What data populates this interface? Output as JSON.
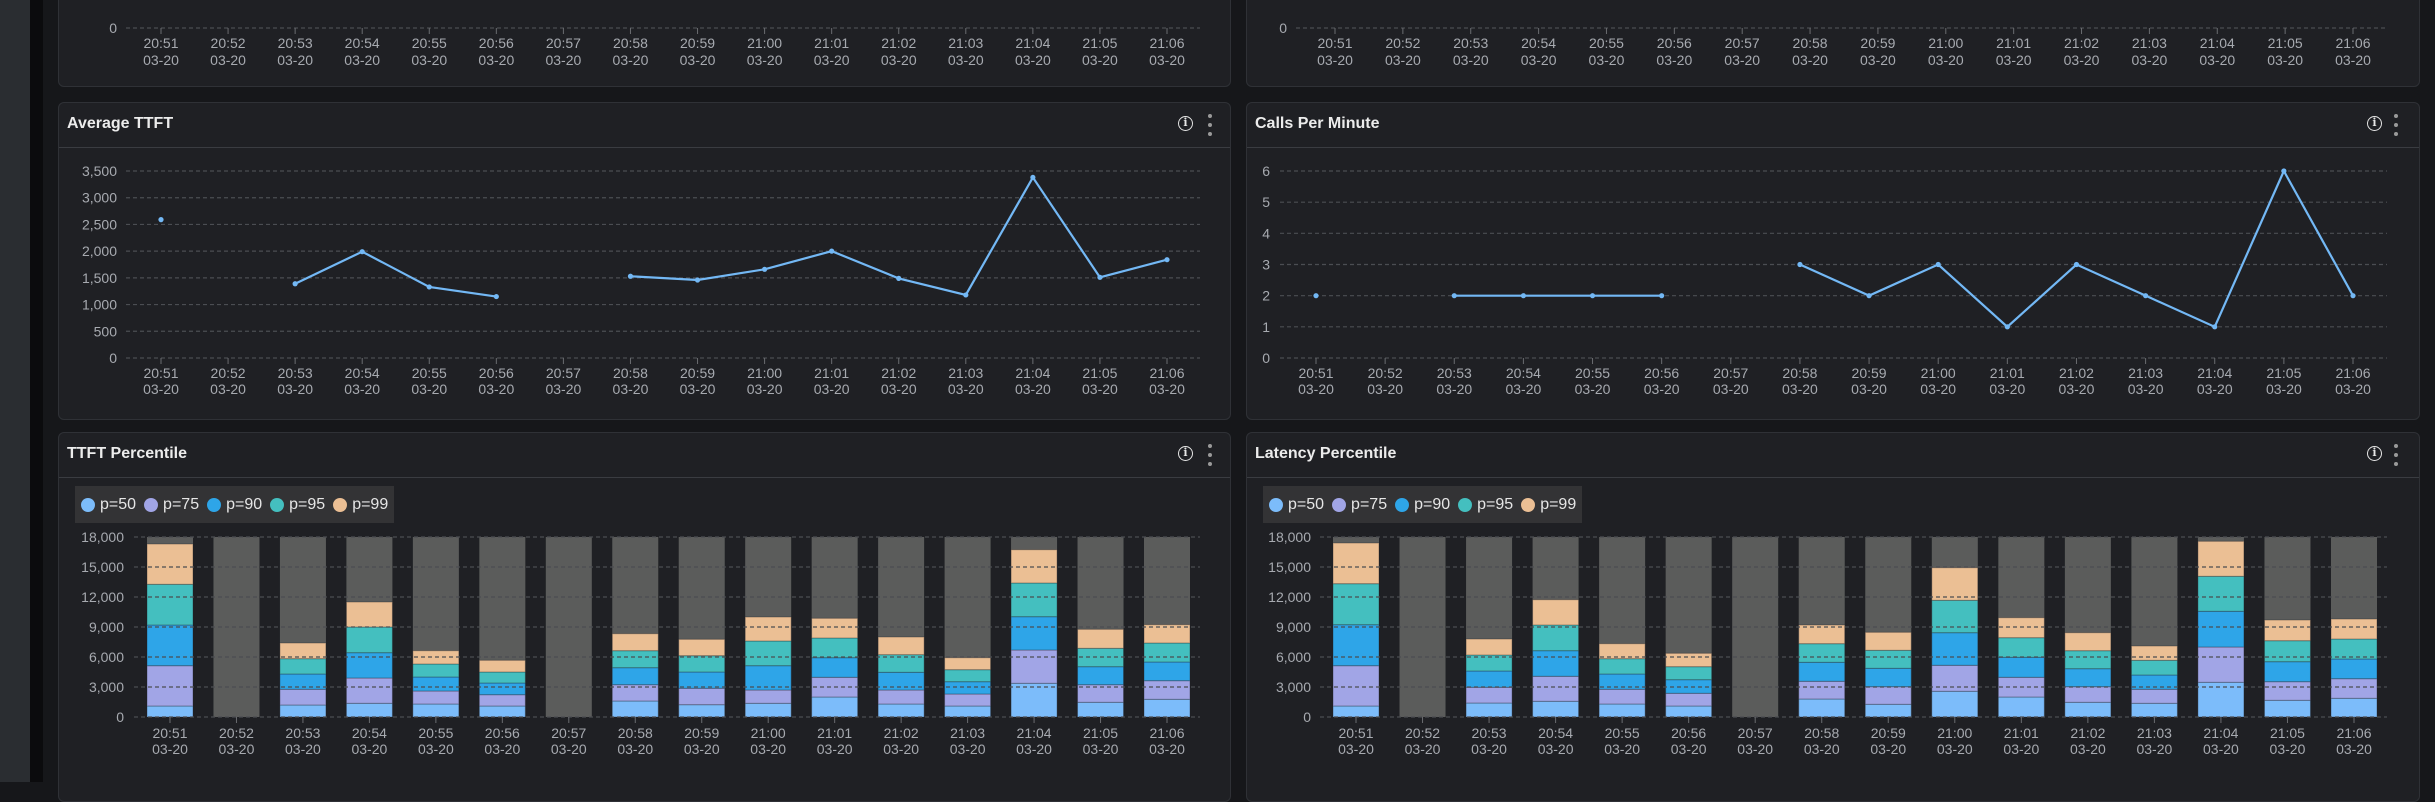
{
  "colors": {
    "line": "#73b8f5",
    "background_bar": "#5b5c5b",
    "p50": "#7cbcfa",
    "p75": "#a1a5e6",
    "p90": "#2ea5e8",
    "p95": "#44bfbf",
    "p99": "#ebbf94"
  },
  "icons": {
    "info": "info-circle-icon",
    "menu": "kebab-menu-icon"
  },
  "info_glyph": "i",
  "chart_data": [
    {
      "type": "line",
      "title": "",
      "categories": [
        "20:51 03-20",
        "20:52 03-20",
        "20:53 03-20",
        "20:54 03-20",
        "20:55 03-20",
        "20:56 03-20",
        "20:57 03-20",
        "20:58 03-20",
        "20:59 03-20",
        "21:00 03-20",
        "21:01 03-20",
        "21:02 03-20",
        "21:03 03-20",
        "21:04 03-20",
        "21:05 03-20",
        "21:06 03-20"
      ],
      "yticks": [
        0
      ],
      "grid": true
    },
    {
      "type": "line",
      "title": "",
      "categories": [
        "20:51 03-20",
        "20:52 03-20",
        "20:53 03-20",
        "20:54 03-20",
        "20:55 03-20",
        "20:56 03-20",
        "20:57 03-20",
        "20:58 03-20",
        "20:59 03-20",
        "21:00 03-20",
        "21:01 03-20",
        "21:02 03-20",
        "21:03 03-20",
        "21:04 03-20",
        "21:05 03-20",
        "21:06 03-20"
      ],
      "yticks": [
        0
      ],
      "grid": true
    },
    {
      "type": "line",
      "title": "Average TTFT",
      "categories": [
        "20:51 03-20",
        "20:52 03-20",
        "20:53 03-20",
        "20:54 03-20",
        "20:55 03-20",
        "20:56 03-20",
        "20:57 03-20",
        "20:58 03-20",
        "20:59 03-20",
        "21:00 03-20",
        "21:01 03-20",
        "21:02 03-20",
        "21:03 03-20",
        "21:04 03-20",
        "21:05 03-20",
        "21:06 03-20"
      ],
      "values": [
        2590,
        null,
        1390,
        1990,
        1330,
        1150,
        null,
        1530,
        1460,
        1660,
        2000,
        1490,
        1180,
        3380,
        1510,
        1840
      ],
      "ylim": [
        0,
        3500
      ],
      "yticks": [
        0,
        500,
        1000,
        1500,
        2000,
        2500,
        3000,
        3500
      ],
      "grid": true
    },
    {
      "type": "line",
      "title": "Calls Per Minute",
      "categories": [
        "20:51 03-20",
        "20:52 03-20",
        "20:53 03-20",
        "20:54 03-20",
        "20:55 03-20",
        "20:56 03-20",
        "20:57 03-20",
        "20:58 03-20",
        "20:59 03-20",
        "21:00 03-20",
        "21:01 03-20",
        "21:02 03-20",
        "21:03 03-20",
        "21:04 03-20",
        "21:05 03-20",
        "21:06 03-20"
      ],
      "values": [
        2,
        null,
        2,
        2,
        2,
        2,
        null,
        3,
        2,
        3,
        1,
        3,
        2,
        1,
        6,
        2
      ],
      "ylim": [
        0,
        6
      ],
      "yticks": [
        0,
        1,
        2,
        3,
        4,
        5,
        6
      ],
      "grid": true
    },
    {
      "type": "bar",
      "stacked": true,
      "title": "TTFT Percentile",
      "legend": "top-left",
      "categories": [
        "20:51 03-20",
        "20:52 03-20",
        "20:53 03-20",
        "20:54 03-20",
        "20:55 03-20",
        "20:56 03-20",
        "20:57 03-20",
        "20:58 03-20",
        "20:59 03-20",
        "21:00 03-20",
        "21:01 03-20",
        "21:02 03-20",
        "21:03 03-20",
        "21:04 03-20",
        "21:05 03-20",
        "21:06 03-20"
      ],
      "ylim": [
        0,
        18000
      ],
      "yticks": [
        0,
        3000,
        6000,
        9000,
        12000,
        15000,
        18000
      ],
      "grid": true,
      "series": [
        {
          "name": "p=50",
          "values": [
            1100,
            null,
            1200,
            1370,
            1300,
            1100,
            null,
            1600,
            1230,
            1370,
            2000,
            1300,
            1100,
            3370,
            1470,
            1770
          ]
        },
        {
          "name": "p=75",
          "values": [
            4030,
            null,
            1570,
            2530,
            1300,
            1130,
            null,
            1630,
            1640,
            1330,
            1970,
            1400,
            1200,
            3330,
            1760,
            1860
          ]
        },
        {
          "name": "p=90",
          "values": [
            4070,
            null,
            1530,
            2530,
            1400,
            1170,
            null,
            1700,
            1630,
            2430,
            1960,
            1770,
            1230,
            3330,
            1800,
            1870
          ]
        },
        {
          "name": "p=95",
          "values": [
            4070,
            null,
            1530,
            2570,
            1300,
            1100,
            null,
            1700,
            1630,
            2470,
            1970,
            1760,
            1200,
            3370,
            1840,
            1900
          ]
        },
        {
          "name": "p=99",
          "values": [
            4030,
            null,
            1570,
            2500,
            1330,
            1170,
            null,
            1700,
            1640,
            2400,
            1970,
            1770,
            1200,
            3330,
            1900,
            1830
          ]
        }
      ]
    },
    {
      "type": "bar",
      "stacked": true,
      "title": "Latency Percentile",
      "legend": "top-left",
      "categories": [
        "20:51 03-20",
        "20:52 03-20",
        "20:53 03-20",
        "20:54 03-20",
        "20:55 03-20",
        "20:56 03-20",
        "20:57 03-20",
        "20:58 03-20",
        "20:59 03-20",
        "21:00 03-20",
        "21:01 03-20",
        "21:02 03-20",
        "21:03 03-20",
        "21:04 03-20",
        "21:05 03-20",
        "21:06 03-20"
      ],
      "ylim": [
        0,
        18000
      ],
      "yticks": [
        0,
        3000,
        6000,
        9000,
        12000,
        15000,
        18000
      ],
      "grid": true,
      "series": [
        {
          "name": "p=50",
          "values": [
            1100,
            null,
            1400,
            1570,
            1300,
            1100,
            null,
            1800,
            1270,
            2570,
            2000,
            1470,
            1370,
            3470,
            1670,
            1870
          ]
        },
        {
          "name": "p=75",
          "values": [
            4030,
            null,
            1570,
            2500,
            1470,
            1270,
            null,
            1770,
            1760,
            2600,
            1970,
            1560,
            1400,
            3530,
            1860,
            1960
          ]
        },
        {
          "name": "p=90",
          "values": [
            4100,
            null,
            1630,
            2560,
            1530,
            1360,
            null,
            1900,
            1840,
            3260,
            2000,
            1800,
            1430,
            3570,
            2000,
            1970
          ]
        },
        {
          "name": "p=95",
          "values": [
            4100,
            null,
            1600,
            2570,
            1530,
            1300,
            null,
            1860,
            1800,
            3240,
            1960,
            1800,
            1470,
            3500,
            2100,
            2000
          ]
        },
        {
          "name": "p=99",
          "values": [
            4070,
            null,
            1600,
            2530,
            1500,
            1340,
            null,
            1870,
            1800,
            3260,
            2000,
            1800,
            1430,
            3500,
            2070,
            2000
          ]
        }
      ]
    }
  ]
}
